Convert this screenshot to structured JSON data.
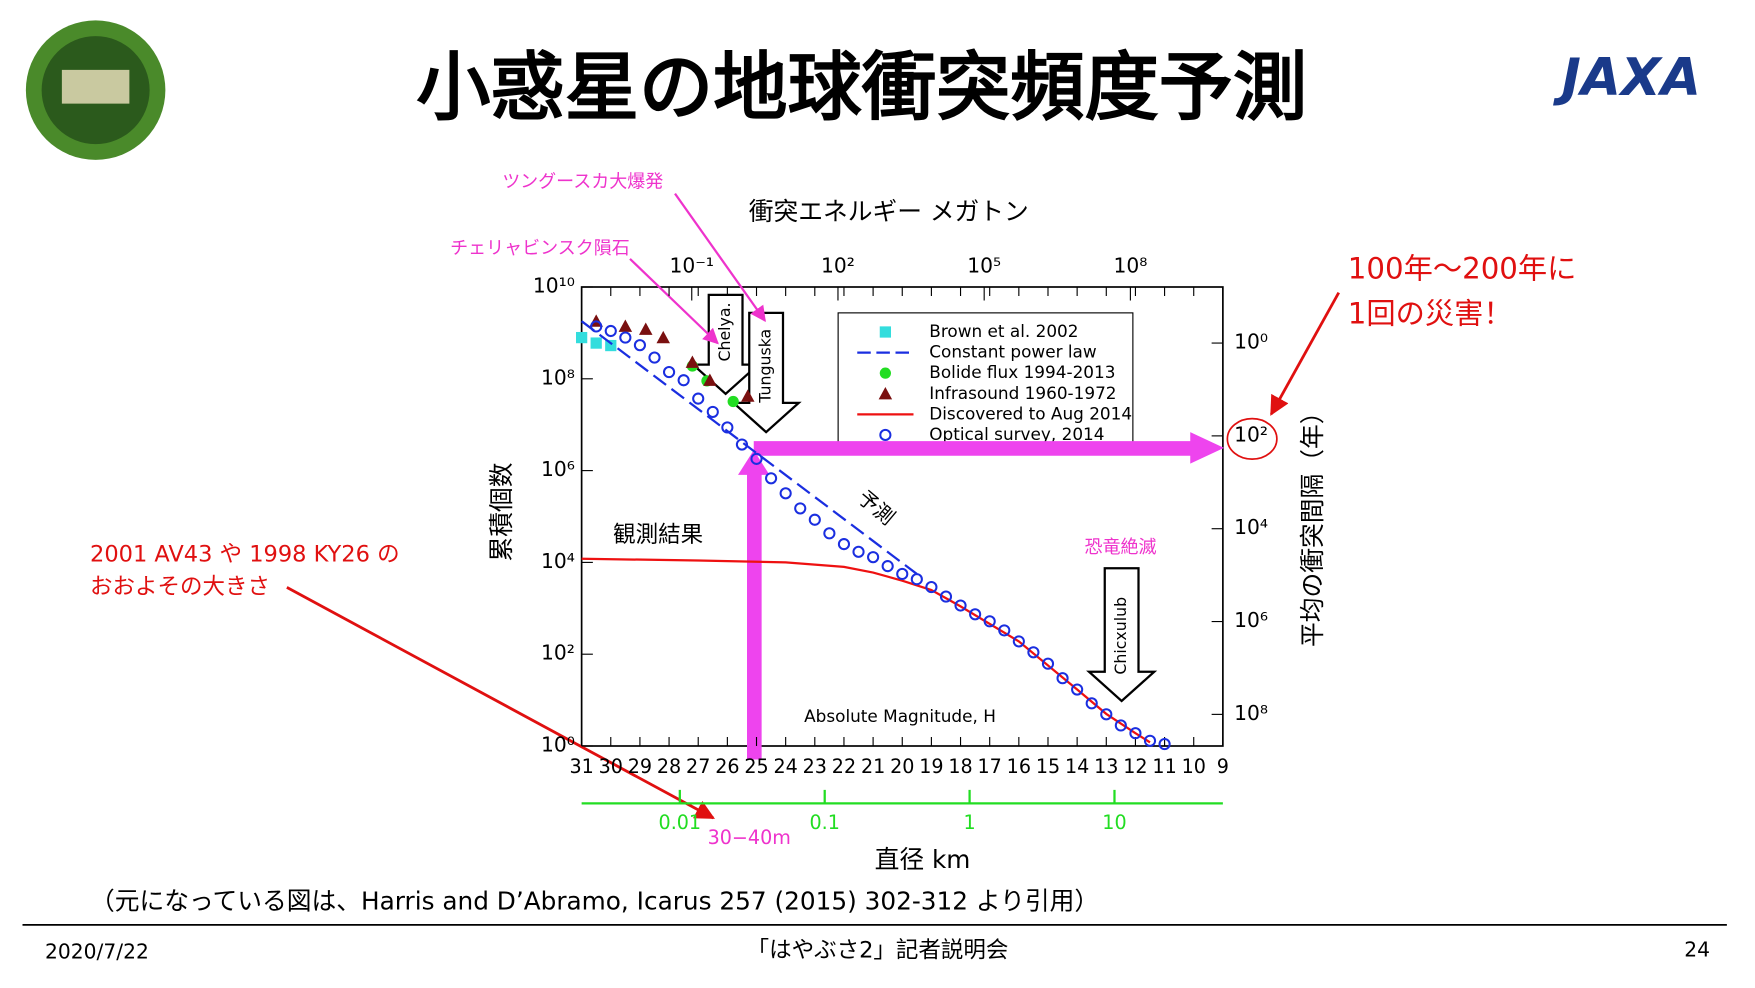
{
  "slide": {
    "title": "小惑星の地球衝突頻度予測",
    "logo_text": "JAXA",
    "citation": "（元になっている図は、Harris and D’Abramo, Icarus 257 (2015) 302-312 より引用）",
    "footer_date": "2020/7/22",
    "footer_center": "「はやぶさ2」記者説明会",
    "page_number": "24",
    "callout_right": [
      "100年～200年に",
      "1回の災害！"
    ],
    "callout_left": [
      "2001 AV43 や 1998 KY26 の",
      "おおよその大きさ"
    ]
  },
  "chart_data": {
    "type": "scatter",
    "xlabel": "Absolute Magnitude, H",
    "ylabel": "累積個数",
    "log_y": true,
    "xlim": [
      31,
      9
    ],
    "xticks": [
      31,
      30,
      29,
      28,
      27,
      26,
      25,
      24,
      23,
      22,
      21,
      20,
      19,
      18,
      17,
      16,
      15,
      14,
      13,
      12,
      11,
      10,
      9
    ],
    "ylim": [
      1,
      10000000000.0
    ],
    "yticks": [
      {
        "value": 1,
        "label": "10⁰"
      },
      {
        "value": 100,
        "label": "10²"
      },
      {
        "value": 10000,
        "label": "10⁴"
      },
      {
        "value": 1000000,
        "label": "10⁶"
      },
      {
        "value": 100000000,
        "label": "10⁸"
      },
      {
        "value": 10000000000,
        "label": "10¹⁰"
      }
    ],
    "top_axis": {
      "label": "衝突エネルギー メガトン",
      "log": true,
      "lim": [
        0.00055,
        7900000000.0
      ],
      "ticks": [
        {
          "value": 0.1,
          "label": "10⁻¹"
        },
        {
          "value": 100,
          "label": "10²"
        },
        {
          "value": 100000,
          "label": "10⁵"
        },
        {
          "value": 100000000,
          "label": "10⁸"
        }
      ]
    },
    "right_axis": {
      "label": "平均の衝突間隔（年）",
      "log": true,
      "lim": [
        0.062,
        480000000.0
      ],
      "ticks": [
        {
          "value": 1,
          "label": "10⁰"
        },
        {
          "value": 100,
          "label": "10²"
        },
        {
          "value": 10000,
          "label": "10⁴"
        },
        {
          "value": 1000000,
          "label": "10⁶"
        },
        {
          "value": 100000000,
          "label": "10⁸"
        }
      ]
    },
    "diameter_axis": {
      "label": "直径 km",
      "log": true,
      "lim": [
        0.0021,
        56
      ],
      "ticks": [
        0.01,
        0.1,
        1,
        10
      ],
      "color": "#22dd22"
    },
    "series": [
      {
        "name": "Brown et al. 2002",
        "marker": "square",
        "color": "#33dddd",
        "x": [
          31,
          30.5,
          30
        ],
        "values": [
          790000000,
          600000000,
          530000000
        ]
      },
      {
        "name": "Constant power law",
        "marker": "dashed-line",
        "color": "#1a2ee0",
        "x": [
          31,
          19.5
        ],
        "values": [
          1800000000,
          5600
        ]
      },
      {
        "name": "Bolide flux 1994-2013",
        "marker": "circle",
        "color": "#22dd22",
        "x": [
          27.2,
          26.7,
          25.8
        ],
        "values": [
          190000000,
          90000000,
          32000000
        ]
      },
      {
        "name": "Infrasound 1960-1972",
        "marker": "triangle",
        "color": "#7a1010",
        "x": [
          30.5,
          29.5,
          28.8,
          28.2,
          27.2,
          26.6,
          25.3
        ],
        "values": [
          1800000000,
          1400000000,
          1200000000,
          790000000,
          230000000,
          93000000,
          42000000
        ]
      },
      {
        "name": "Discovered to Aug 2014",
        "marker": "line",
        "color": "#ee1111",
        "x": [
          31,
          27,
          24,
          22,
          21,
          20,
          19,
          18,
          16,
          14,
          13,
          12,
          11.5
        ],
        "values": [
          12000,
          11000,
          10000,
          8000,
          6000,
          4000,
          2500,
          1100,
          190,
          17,
          5,
          1.9,
          1.2
        ]
      },
      {
        "name": "Optical survey, 2014",
        "marker": "open-circle",
        "color": "#1a2ee0",
        "x": [
          30.5,
          30,
          29.5,
          29,
          28.5,
          28,
          27.5,
          27,
          26.5,
          26,
          25.5,
          25,
          24.5,
          24,
          23.5,
          23,
          22.5,
          22,
          21.5,
          21,
          20.5,
          20,
          19.5,
          19,
          18.5,
          18,
          17.5,
          17,
          16.5,
          16,
          15.5,
          15,
          14.5,
          14,
          13.5,
          13,
          12.5,
          12,
          11.5,
          11
        ],
        "values": [
          1380000000,
          1100000000,
          790000000,
          540000000,
          290000000,
          140000000,
          93000000,
          37000000,
          19000000,
          8700000,
          3700000,
          1800000,
          680000,
          320000,
          150000,
          85000,
          43000,
          25000,
          17000,
          13000,
          8300,
          5600,
          4300,
          2900,
          1800,
          1150,
          740,
          520,
          330,
          190,
          110,
          62,
          30,
          17,
          8.5,
          4.9,
          2.8,
          1.9,
          1.3,
          1.1
        ]
      }
    ],
    "annotations": {
      "prediction": "予測",
      "observed": "観測結果",
      "chelya": "Chelya.",
      "tunguska": "Tunguska",
      "chicxulub": "Chicxulub",
      "size_range": "30−40m",
      "dino": "恐竜絶滅",
      "tunguska_jp": "ツングースカ大爆発",
      "chelya_jp": "チェリャビンスク隕石"
    }
  }
}
